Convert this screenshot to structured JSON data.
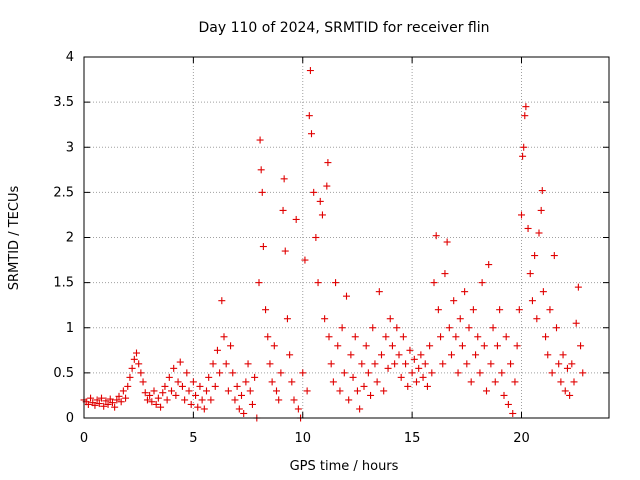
{
  "chart_data": {
    "type": "scatter",
    "title": "Day 110 of 2024, SRMTID for receiver flin",
    "xlabel": "GPS time / hours",
    "ylabel": "SRMTID / TECUs",
    "xlim": [
      0,
      24
    ],
    "ylim": [
      0,
      4
    ],
    "xticks": [
      0,
      5,
      10,
      15,
      20
    ],
    "xtick_labels": [
      "0",
      "5",
      "10",
      "15",
      "20"
    ],
    "yticks": [
      0,
      0.5,
      1,
      1.5,
      2,
      2.5,
      3,
      3.5,
      4
    ],
    "ytick_labels": [
      "0",
      "0.5",
      "1",
      "1.5",
      "2",
      "2.5",
      "3",
      "3.5",
      "4"
    ],
    "grid": true,
    "marker": "+",
    "series": [
      {
        "name": "SRMTID",
        "color": "#e00000",
        "points": [
          [
            0.0,
            0.2
          ],
          [
            0.1,
            0.18
          ],
          [
            0.2,
            0.15
          ],
          [
            0.3,
            0.22
          ],
          [
            0.4,
            0.17
          ],
          [
            0.5,
            0.14
          ],
          [
            0.6,
            0.2
          ],
          [
            0.7,
            0.16
          ],
          [
            0.8,
            0.22
          ],
          [
            0.9,
            0.13
          ],
          [
            1.0,
            0.19
          ],
          [
            1.1,
            0.15
          ],
          [
            1.2,
            0.21
          ],
          [
            1.3,
            0.17
          ],
          [
            1.4,
            0.12
          ],
          [
            1.5,
            0.2
          ],
          [
            1.6,
            0.24
          ],
          [
            1.7,
            0.18
          ],
          [
            1.8,
            0.3
          ],
          [
            1.9,
            0.22
          ],
          [
            2.0,
            0.35
          ],
          [
            2.1,
            0.45
          ],
          [
            2.2,
            0.55
          ],
          [
            2.3,
            0.65
          ],
          [
            2.4,
            0.72
          ],
          [
            2.5,
            0.6
          ],
          [
            2.6,
            0.5
          ],
          [
            2.7,
            0.4
          ],
          [
            2.8,
            0.28
          ],
          [
            2.9,
            0.2
          ],
          [
            3.0,
            0.25
          ],
          [
            3.1,
            0.18
          ],
          [
            3.2,
            0.3
          ],
          [
            3.3,
            0.15
          ],
          [
            3.4,
            0.22
          ],
          [
            3.5,
            0.12
          ],
          [
            3.6,
            0.28
          ],
          [
            3.7,
            0.35
          ],
          [
            3.8,
            0.2
          ],
          [
            3.9,
            0.45
          ],
          [
            4.0,
            0.3
          ],
          [
            4.1,
            0.55
          ],
          [
            4.2,
            0.25
          ],
          [
            4.3,
            0.4
          ],
          [
            4.4,
            0.62
          ],
          [
            4.5,
            0.35
          ],
          [
            4.6,
            0.2
          ],
          [
            4.7,
            0.5
          ],
          [
            4.8,
            0.3
          ],
          [
            4.9,
            0.15
          ],
          [
            5.0,
            0.4
          ],
          [
            5.1,
            0.25
          ],
          [
            5.2,
            0.12
          ],
          [
            5.3,
            0.35
          ],
          [
            5.4,
            0.2
          ],
          [
            5.5,
            0.1
          ],
          [
            5.6,
            0.3
          ],
          [
            5.7,
            0.45
          ],
          [
            5.8,
            0.2
          ],
          [
            5.9,
            0.6
          ],
          [
            6.0,
            0.35
          ],
          [
            6.1,
            0.75
          ],
          [
            6.2,
            0.5
          ],
          [
            6.3,
            1.3
          ],
          [
            6.4,
            0.9
          ],
          [
            6.5,
            0.6
          ],
          [
            6.6,
            0.3
          ],
          [
            6.7,
            0.8
          ],
          [
            6.8,
            0.5
          ],
          [
            6.9,
            0.2
          ],
          [
            7.0,
            0.35
          ],
          [
            7.1,
            0.1
          ],
          [
            7.2,
            0.25
          ],
          [
            7.3,
            0.05
          ],
          [
            7.4,
            0.4
          ],
          [
            7.5,
            0.6
          ],
          [
            7.6,
            0.3
          ],
          [
            7.7,
            0.15
          ],
          [
            7.8,
            0.45
          ],
          [
            7.9,
            0.0
          ],
          [
            8.0,
            1.5
          ],
          [
            8.05,
            3.08
          ],
          [
            8.1,
            2.75
          ],
          [
            8.15,
            2.5
          ],
          [
            8.2,
            1.9
          ],
          [
            8.3,
            1.2
          ],
          [
            8.4,
            0.9
          ],
          [
            8.5,
            0.6
          ],
          [
            8.6,
            0.4
          ],
          [
            8.7,
            0.8
          ],
          [
            8.8,
            0.3
          ],
          [
            8.9,
            0.2
          ],
          [
            9.0,
            0.5
          ],
          [
            9.1,
            2.3
          ],
          [
            9.15,
            2.65
          ],
          [
            9.2,
            1.85
          ],
          [
            9.3,
            1.1
          ],
          [
            9.4,
            0.7
          ],
          [
            9.5,
            0.4
          ],
          [
            9.6,
            0.2
          ],
          [
            9.7,
            2.2
          ],
          [
            9.8,
            0.1
          ],
          [
            9.9,
            0.0
          ],
          [
            10.0,
            0.5
          ],
          [
            10.1,
            1.75
          ],
          [
            10.2,
            0.3
          ],
          [
            10.3,
            3.35
          ],
          [
            10.35,
            3.85
          ],
          [
            10.4,
            3.15
          ],
          [
            10.5,
            2.5
          ],
          [
            10.6,
            2.0
          ],
          [
            10.7,
            1.5
          ],
          [
            10.8,
            2.4
          ],
          [
            10.9,
            2.25
          ],
          [
            11.0,
            1.1
          ],
          [
            11.1,
            2.57
          ],
          [
            11.15,
            2.83
          ],
          [
            11.2,
            0.9
          ],
          [
            11.3,
            0.6
          ],
          [
            11.4,
            0.4
          ],
          [
            11.5,
            1.5
          ],
          [
            11.6,
            0.8
          ],
          [
            11.7,
            0.3
          ],
          [
            11.8,
            1.0
          ],
          [
            11.9,
            0.5
          ],
          [
            12.0,
            1.35
          ],
          [
            12.1,
            0.2
          ],
          [
            12.2,
            0.7
          ],
          [
            12.3,
            0.45
          ],
          [
            12.4,
            0.9
          ],
          [
            12.5,
            0.3
          ],
          [
            12.6,
            0.1
          ],
          [
            12.7,
            0.6
          ],
          [
            12.8,
            0.35
          ],
          [
            12.9,
            0.8
          ],
          [
            13.0,
            0.5
          ],
          [
            13.1,
            0.25
          ],
          [
            13.2,
            1.0
          ],
          [
            13.3,
            0.6
          ],
          [
            13.4,
            0.4
          ],
          [
            13.5,
            1.4
          ],
          [
            13.6,
            0.7
          ],
          [
            13.7,
            0.3
          ],
          [
            13.8,
            0.9
          ],
          [
            13.9,
            0.55
          ],
          [
            14.0,
            1.1
          ],
          [
            14.1,
            0.8
          ],
          [
            14.2,
            0.6
          ],
          [
            14.3,
            1.0
          ],
          [
            14.4,
            0.7
          ],
          [
            14.5,
            0.45
          ],
          [
            14.6,
            0.9
          ],
          [
            14.7,
            0.6
          ],
          [
            14.8,
            0.35
          ],
          [
            14.9,
            0.75
          ],
          [
            15.0,
            0.5
          ],
          [
            15.1,
            0.65
          ],
          [
            15.2,
            0.4
          ],
          [
            15.3,
            0.55
          ],
          [
            15.4,
            0.7
          ],
          [
            15.5,
            0.45
          ],
          [
            15.6,
            0.6
          ],
          [
            15.7,
            0.35
          ],
          [
            15.8,
            0.8
          ],
          [
            15.9,
            0.5
          ],
          [
            16.0,
            1.5
          ],
          [
            16.1,
            2.02
          ],
          [
            16.2,
            1.2
          ],
          [
            16.3,
            0.9
          ],
          [
            16.4,
            0.6
          ],
          [
            16.5,
            1.6
          ],
          [
            16.6,
            1.95
          ],
          [
            16.7,
            1.0
          ],
          [
            16.8,
            0.7
          ],
          [
            16.9,
            1.3
          ],
          [
            17.0,
            0.9
          ],
          [
            17.1,
            0.5
          ],
          [
            17.2,
            1.1
          ],
          [
            17.3,
            0.8
          ],
          [
            17.4,
            1.4
          ],
          [
            17.5,
            0.6
          ],
          [
            17.6,
            1.0
          ],
          [
            17.7,
            0.4
          ],
          [
            17.8,
            1.2
          ],
          [
            17.9,
            0.7
          ],
          [
            18.0,
            0.9
          ],
          [
            18.1,
            0.5
          ],
          [
            18.2,
            1.5
          ],
          [
            18.3,
            0.8
          ],
          [
            18.4,
            0.3
          ],
          [
            18.5,
            1.7
          ],
          [
            18.6,
            0.6
          ],
          [
            18.7,
            1.0
          ],
          [
            18.8,
            0.4
          ],
          [
            18.9,
            0.8
          ],
          [
            19.0,
            1.2
          ],
          [
            19.1,
            0.5
          ],
          [
            19.2,
            0.25
          ],
          [
            19.3,
            0.9
          ],
          [
            19.4,
            0.15
          ],
          [
            19.5,
            0.6
          ],
          [
            19.6,
            0.05
          ],
          [
            19.7,
            0.4
          ],
          [
            19.8,
            0.8
          ],
          [
            19.9,
            1.2
          ],
          [
            20.0,
            2.25
          ],
          [
            20.05,
            2.9
          ],
          [
            20.1,
            3.0
          ],
          [
            20.15,
            3.35
          ],
          [
            20.2,
            3.45
          ],
          [
            20.3,
            2.1
          ],
          [
            20.4,
            1.6
          ],
          [
            20.5,
            1.3
          ],
          [
            20.6,
            1.8
          ],
          [
            20.7,
            1.1
          ],
          [
            20.8,
            2.05
          ],
          [
            20.9,
            2.3
          ],
          [
            20.95,
            2.52
          ],
          [
            21.0,
            1.4
          ],
          [
            21.1,
            0.9
          ],
          [
            21.2,
            0.7
          ],
          [
            21.3,
            1.2
          ],
          [
            21.4,
            0.5
          ],
          [
            21.5,
            1.8
          ],
          [
            21.6,
            1.0
          ],
          [
            21.7,
            0.6
          ],
          [
            21.8,
            0.4
          ],
          [
            21.9,
            0.7
          ],
          [
            22.0,
            0.3
          ],
          [
            22.1,
            0.55
          ],
          [
            22.2,
            0.25
          ],
          [
            22.3,
            0.6
          ],
          [
            22.4,
            0.4
          ],
          [
            22.5,
            1.05
          ],
          [
            22.6,
            1.45
          ],
          [
            22.7,
            0.8
          ],
          [
            22.8,
            0.5
          ]
        ]
      }
    ]
  }
}
